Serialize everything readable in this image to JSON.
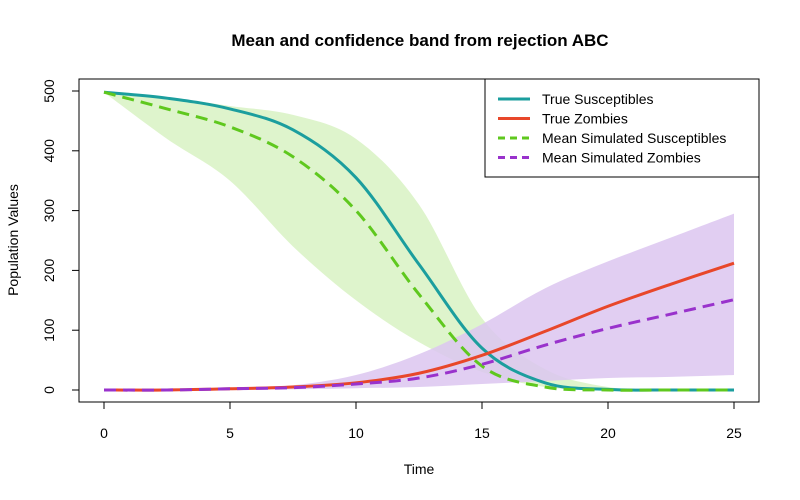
{
  "chart_data": {
    "type": "line",
    "title": "Mean and confidence band from rejection ABC",
    "xlabel": "Time",
    "ylabel": "Population Values",
    "xlim": [
      0,
      25
    ],
    "ylim": [
      0,
      500
    ],
    "xticks": [
      0,
      5,
      10,
      15,
      20,
      25
    ],
    "yticks": [
      0,
      100,
      200,
      300,
      400,
      500
    ],
    "grid": false,
    "legend_position": "top-right",
    "x": [
      0,
      2.5,
      5,
      7.5,
      10,
      12.5,
      15,
      17.5,
      20,
      22.5,
      25
    ],
    "series": [
      {
        "name": "True Susceptibles",
        "color": "#1b9e9e",
        "style": "solid",
        "values": [
          498,
          488,
          470,
          435,
          355,
          210,
          70,
          12,
          1,
          0,
          0
        ]
      },
      {
        "name": "True Zombies",
        "color": "#e8472a",
        "style": "solid",
        "values": [
          0,
          0,
          2,
          5,
          12,
          28,
          58,
          98,
          140,
          177,
          212
        ]
      },
      {
        "name": "Mean Simulated Susceptibles",
        "color": "#5fc81e",
        "style": "dashed",
        "values": [
          498,
          470,
          440,
          390,
          300,
          160,
          40,
          5,
          0,
          0,
          0
        ]
      },
      {
        "name": "Mean Simulated Zombies",
        "color": "#9932cc",
        "style": "dashed",
        "values": [
          0,
          0,
          2,
          4,
          10,
          20,
          43,
          75,
          103,
          127,
          151
        ]
      }
    ],
    "bands": [
      {
        "series": "Mean Simulated Susceptibles",
        "color": "#c8ecaa",
        "opacity": 0.6,
        "lower": [
          498,
          420,
          350,
          240,
          150,
          80,
          30,
          5,
          0,
          0,
          0
        ],
        "upper": [
          498,
          490,
          475,
          460,
          420,
          310,
          120,
          35,
          5,
          0,
          0
        ]
      },
      {
        "series": "Mean Simulated Zombies",
        "color": "#dcc6f0",
        "opacity": 0.85,
        "lower": [
          0,
          0,
          0,
          1,
          3,
          5,
          10,
          15,
          20,
          22,
          25
        ],
        "upper": [
          0,
          1,
          3,
          8,
          25,
          60,
          110,
          170,
          215,
          255,
          295
        ]
      }
    ]
  }
}
